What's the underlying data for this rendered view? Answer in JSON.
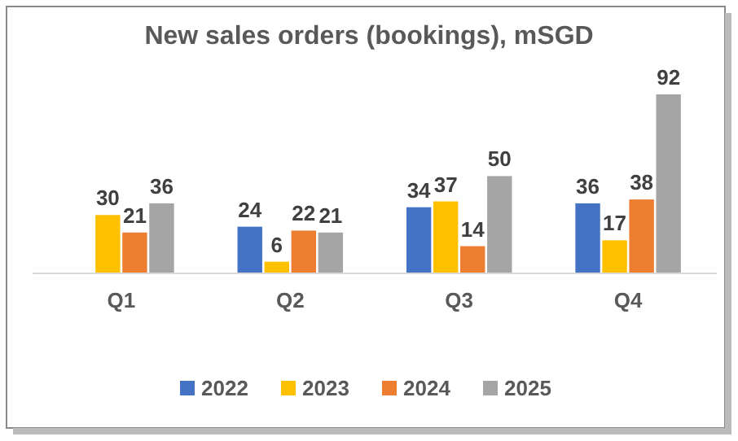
{
  "chart_data": {
    "type": "bar",
    "title": "New sales orders (bookings), mSGD",
    "categories": [
      "Q1",
      "Q2",
      "Q3",
      "Q4"
    ],
    "series": [
      {
        "name": "2022",
        "color": "#4472c4",
        "values": [
          null,
          24,
          34,
          36
        ]
      },
      {
        "name": "2023",
        "color": "#ffc000",
        "values": [
          30,
          6,
          37,
          17
        ]
      },
      {
        "name": "2024",
        "color": "#ed7d31",
        "values": [
          21,
          22,
          14,
          38
        ]
      },
      {
        "name": "2025",
        "color": "#a5a5a5",
        "values": [
          36,
          21,
          50,
          92
        ]
      }
    ],
    "data_labels": true,
    "legend": "bottom",
    "grid": false
  }
}
